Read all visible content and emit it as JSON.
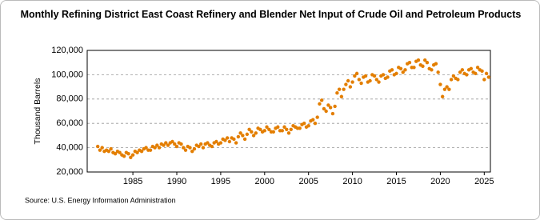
{
  "chart_data": {
    "type": "scatter",
    "title": "Monthly Refining District East Coast Refinery and Blender Net Input of Crude Oil and Petroleum Products",
    "y_label": "Thousand Barrels",
    "source": "Source: U.S. Energy Information Administration",
    "color": "#e37e00",
    "grid": true,
    "xlim": [
      1979.8,
      2025.7
    ],
    "xticks": [
      1985,
      1990,
      1995,
      2000,
      2005,
      2010,
      2015,
      2020,
      2025
    ],
    "ylim": [
      20000,
      120000
    ],
    "yticks": [
      {
        "value": 20000,
        "label": "20,000"
      },
      {
        "value": 40000,
        "label": "40,000"
      },
      {
        "value": 60000,
        "label": "60,000"
      },
      {
        "value": 80000,
        "label": "80,000"
      },
      {
        "value": 100000,
        "label": "100,000"
      },
      {
        "value": 120000,
        "label": "120,000"
      }
    ],
    "x": [
      1981,
      1981.25,
      1981.5,
      1981.75,
      1982,
      1982.25,
      1982.5,
      1982.75,
      1983,
      1983.25,
      1983.5,
      1983.75,
      1984,
      1984.25,
      1984.5,
      1984.75,
      1985,
      1985.25,
      1985.5,
      1985.75,
      1986,
      1986.25,
      1986.5,
      1986.75,
      1987,
      1987.25,
      1987.5,
      1987.75,
      1988,
      1988.25,
      1988.5,
      1988.75,
      1989,
      1989.25,
      1989.5,
      1989.75,
      1990,
      1990.25,
      1990.5,
      1990.75,
      1991,
      1991.25,
      1991.5,
      1991.75,
      1992,
      1992.25,
      1992.5,
      1992.75,
      1993,
      1993.25,
      1993.5,
      1993.75,
      1994,
      1994.25,
      1994.5,
      1994.75,
      1995,
      1995.25,
      1995.5,
      1995.75,
      1996,
      1996.25,
      1996.5,
      1996.75,
      1997,
      1997.25,
      1997.5,
      1997.75,
      1998,
      1998.25,
      1998.5,
      1998.75,
      1999,
      1999.25,
      1999.5,
      1999.75,
      2000,
      2000.25,
      2000.5,
      2000.75,
      2001,
      2001.25,
      2001.5,
      2001.75,
      2002,
      2002.25,
      2002.5,
      2002.75,
      2003,
      2003.25,
      2003.5,
      2003.75,
      2004,
      2004.25,
      2004.5,
      2004.75,
      2005,
      2005.25,
      2005.5,
      2005.75,
      2006,
      2006.25,
      2006.5,
      2006.75,
      2007,
      2007.25,
      2007.5,
      2007.75,
      2008,
      2008.25,
      2008.5,
      2008.75,
      2009,
      2009.25,
      2009.5,
      2009.75,
      2010,
      2010.25,
      2010.5,
      2010.75,
      2011,
      2011.25,
      2011.5,
      2011.75,
      2012,
      2012.25,
      2012.5,
      2012.75,
      2013,
      2013.25,
      2013.5,
      2013.75,
      2014,
      2014.25,
      2014.5,
      2014.75,
      2015,
      2015.25,
      2015.5,
      2015.75,
      2016,
      2016.25,
      2016.5,
      2016.75,
      2017,
      2017.25,
      2017.5,
      2017.75,
      2018,
      2018.25,
      2018.5,
      2018.75,
      2019,
      2019.25,
      2019.5,
      2019.75,
      2020,
      2020.25,
      2020.5,
      2020.75,
      2021,
      2021.25,
      2021.5,
      2021.75,
      2022,
      2022.25,
      2022.5,
      2022.75,
      2023,
      2023.25,
      2023.5,
      2023.75,
      2024,
      2024.25,
      2024.5,
      2024.75,
      2025,
      2025.25,
      2025.5
    ],
    "values": [
      41000,
      38000,
      40000,
      37000,
      38000,
      37000,
      39000,
      36000,
      35000,
      37000,
      36000,
      34000,
      33000,
      36000,
      35000,
      32000,
      34000,
      37000,
      36000,
      38000,
      37000,
      39000,
      40000,
      38000,
      38000,
      41000,
      40000,
      42000,
      40000,
      43000,
      42000,
      44000,
      42000,
      44000,
      45000,
      43000,
      41000,
      44000,
      43000,
      40000,
      38000,
      41000,
      40000,
      37000,
      39000,
      42000,
      41000,
      43000,
      40000,
      43000,
      44000,
      42000,
      41000,
      44000,
      45000,
      43000,
      44000,
      47000,
      46000,
      48000,
      45000,
      48000,
      47000,
      44000,
      49000,
      52000,
      50000,
      47000,
      51000,
      55000,
      53000,
      50000,
      52000,
      56000,
      55000,
      53000,
      54000,
      57000,
      55000,
      53000,
      53000,
      56000,
      57000,
      54000,
      54000,
      57000,
      55000,
      52000,
      55000,
      58000,
      57000,
      56000,
      56000,
      59000,
      60000,
      57000,
      58000,
      62000,
      63000,
      60000,
      65000,
      76000,
      79000,
      72000,
      70000,
      75000,
      73000,
      68000,
      74000,
      85000,
      88000,
      82000,
      88000,
      92000,
      95000,
      90000,
      94000,
      99000,
      101000,
      96000,
      93000,
      98000,
      99000,
      94000,
      95000,
      100000,
      99000,
      96000,
      94000,
      99000,
      100000,
      97000,
      98000,
      103000,
      104000,
      100000,
      101000,
      106000,
      105000,
      102000,
      104000,
      109000,
      110000,
      106000,
      106000,
      111000,
      112000,
      108000,
      107000,
      112000,
      110000,
      105000,
      104000,
      108000,
      109000,
      102000,
      92000,
      82000,
      88000,
      90000,
      88000,
      96000,
      99000,
      97000,
      96000,
      102000,
      104000,
      101000,
      100000,
      104000,
      105000,
      102000,
      101000,
      106000,
      104000,
      103000,
      96000,
      101000,
      98000
    ]
  }
}
